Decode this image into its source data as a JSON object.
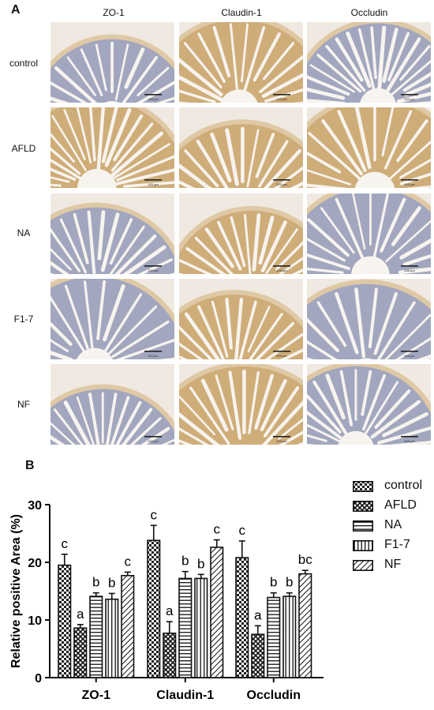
{
  "panel_a": {
    "letter": "A",
    "columns": [
      "ZO-1",
      "Claudin-1",
      "Occludin"
    ],
    "rows": [
      "control",
      "AFLD",
      "NA",
      "F1-7",
      "NF"
    ],
    "scale_bar_text": "100 μm"
  },
  "panel_b": {
    "letter": "B"
  },
  "colors": {
    "tissue_blue": "#8e9cc8",
    "tissue_brown": "#c9a46b",
    "background_tile": "#efe9e2"
  },
  "chart_data": {
    "type": "bar",
    "categories": [
      "ZO-1",
      "Claudin-1",
      "Occludin"
    ],
    "ylabel": "Relative positive Area (%)",
    "xlabel": "",
    "ylim": [
      0,
      30
    ],
    "yticks": [
      0,
      10,
      20,
      30
    ],
    "legend_position": "right",
    "series": [
      {
        "name": "control",
        "pattern": "checker",
        "values": [
          19.5,
          23.8,
          20.8
        ],
        "errors": [
          1.9,
          2.6,
          2.9
        ],
        "letters": [
          "c",
          "c",
          "c"
        ]
      },
      {
        "name": "AFLD",
        "pattern": "crosshatch",
        "values": [
          8.6,
          7.7,
          7.5
        ],
        "errors": [
          0.6,
          2.0,
          1.5
        ],
        "letters": [
          "a",
          "a",
          "a"
        ]
      },
      {
        "name": "NA",
        "pattern": "horizontal",
        "values": [
          14.1,
          17.2,
          13.9
        ],
        "errors": [
          0.6,
          1.2,
          0.8
        ],
        "letters": [
          "b",
          "b",
          "b"
        ]
      },
      {
        "name": "F1-7",
        "pattern": "vertical",
        "values": [
          13.6,
          17.2,
          14.1
        ],
        "errors": [
          1.0,
          0.7,
          0.6
        ],
        "letters": [
          "b",
          "b",
          "b"
        ]
      },
      {
        "name": "NF",
        "pattern": "diagonal",
        "values": [
          17.7,
          22.6,
          18.0
        ],
        "errors": [
          0.6,
          1.3,
          0.6
        ],
        "letters": [
          "c",
          "c",
          "bc"
        ]
      }
    ]
  }
}
